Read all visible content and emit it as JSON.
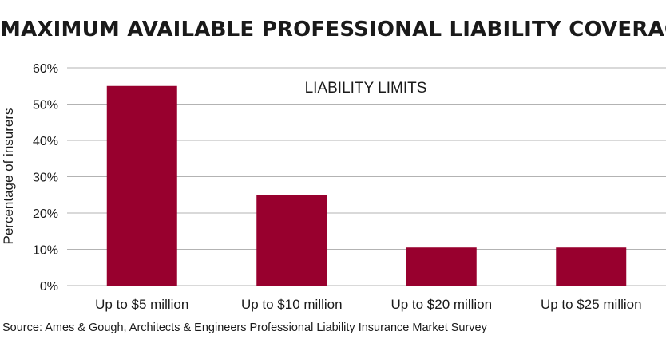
{
  "title": "MAXIMUM AVAILABLE PROFESSIONAL LIABILITY COVERAGE",
  "source": "Source: Ames & Gough, Architects & Engineers Professional Liability Insurance Market Survey",
  "colors": {
    "bar": "#98002e",
    "grid": "#b3b3b3",
    "text": "#1a1a1a"
  },
  "chart_data": {
    "type": "bar",
    "title": "LIABILITY LIMITS",
    "xlabel": "",
    "ylabel": "Percentage of insurers",
    "categories": [
      "Up to $5 million",
      "Up to $10 million",
      "Up to $20 million",
      "Up to $25 million"
    ],
    "values": [
      55,
      25,
      10.5,
      10.5
    ],
    "ylim": [
      0,
      60
    ],
    "yticks": [
      0,
      10,
      20,
      30,
      40,
      50,
      60
    ],
    "ytick_labels": [
      "0%",
      "10%",
      "20%",
      "30%",
      "40%",
      "50%",
      "60%"
    ],
    "grid": true,
    "legend": "none"
  }
}
